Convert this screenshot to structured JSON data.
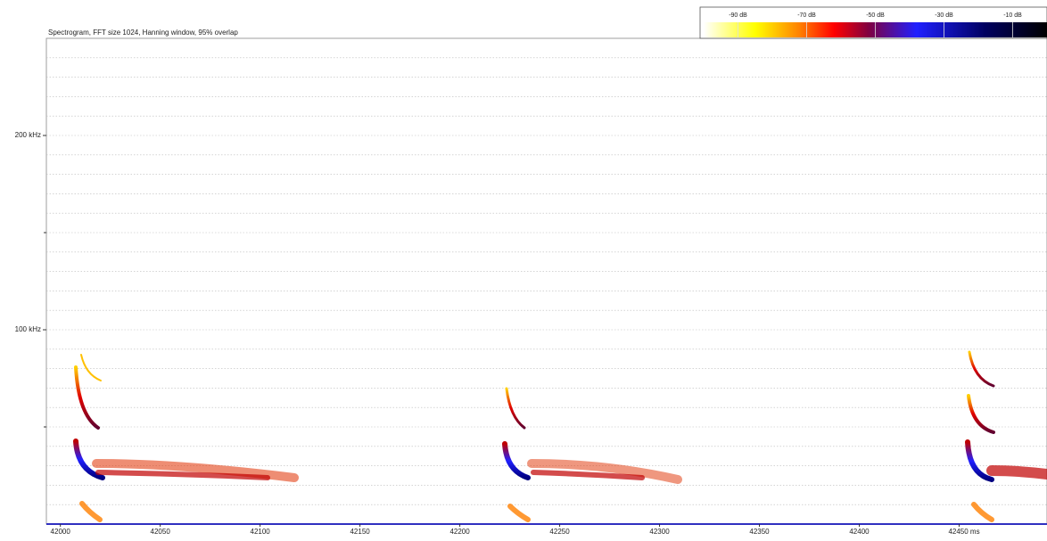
{
  "chart_data": {
    "type": "spectrogram",
    "title": "Spectrogram, FFT size 1024, Hanning window, 95% overlap",
    "xlim": [
      41993,
      42494
    ],
    "xticks": [
      42000,
      42050,
      42100,
      42150,
      42200,
      42250,
      42300,
      42350,
      42400,
      {
        "value": 42450,
        "label": "42450 ms"
      }
    ],
    "ylim": [
      0,
      250
    ],
    "yticks": [
      {
        "value": 100,
        "label": "100 kHz"
      },
      {
        "value": 200,
        "label": "200 kHz"
      }
    ],
    "yminorticks": [
      50,
      150
    ],
    "ygrid": [
      10,
      20,
      30,
      40,
      50,
      60,
      70,
      80,
      90,
      100,
      110,
      120,
      130,
      140,
      150,
      160,
      170,
      180,
      190,
      200,
      210,
      220,
      230,
      240
    ],
    "colorbar": {
      "lim": [
        -100,
        0
      ],
      "ticks": [
        {
          "value": -90,
          "label": "-90 dB"
        },
        {
          "value": -70,
          "label": "-70 dB"
        },
        {
          "value": -50,
          "label": "-50 dB"
        },
        {
          "value": -30,
          "label": "-30 dB"
        },
        {
          "value": -10,
          "label": "-10 dB"
        }
      ],
      "colormap": [
        {
          "value": -100,
          "color": "#ffffff"
        },
        {
          "value": -85,
          "color": "#ffff00"
        },
        {
          "value": -72,
          "color": "#ff8000"
        },
        {
          "value": -62,
          "color": "#ff0000"
        },
        {
          "value": -52,
          "color": "#800040"
        },
        {
          "value": -38,
          "color": "#2020ff"
        },
        {
          "value": -18,
          "color": "#000060"
        },
        {
          "value": 0,
          "color": "#000000"
        }
      ]
    },
    "axis_color": "#3030c0"
  }
}
